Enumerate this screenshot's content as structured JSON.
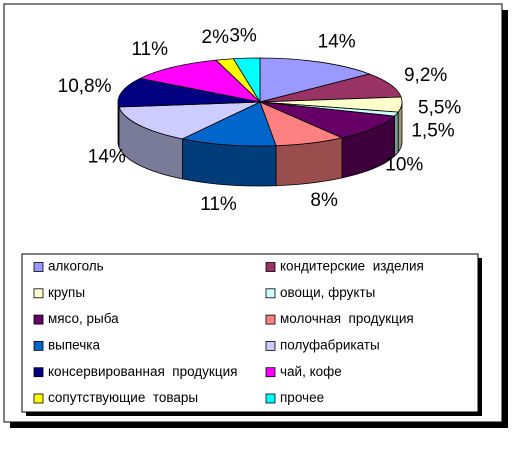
{
  "chart_data": {
    "type": "pie",
    "categories": [
      "алкоголь",
      "кондитерские  изделия",
      "крупы",
      "овощи, фрукты",
      "мясо, рыба",
      "молочная  продукция",
      "выпечка",
      "полуфабрикаты",
      "консервированная  продукция",
      "чай, кофе",
      "сопутствующие  товары",
      "прочее"
    ],
    "values": [
      14,
      9.2,
      5.5,
      1.5,
      10,
      8,
      11,
      14,
      10.8,
      11,
      2,
      3
    ],
    "value_labels": [
      "14%",
      "9,2%",
      "5,5%",
      "1,5%",
      "10%",
      "8%",
      "11%",
      "14%",
      "10,8%",
      "11%",
      "2%",
      "3%"
    ],
    "colors": [
      "#9999ff",
      "#993366",
      "#ffffcc",
      "#ccffff",
      "#660066",
      "#ff8080",
      "#0066cc",
      "#ccccff",
      "#000080",
      "#ff00ff",
      "#ffff00",
      "#00ffff"
    ],
    "legend": "bottom"
  }
}
